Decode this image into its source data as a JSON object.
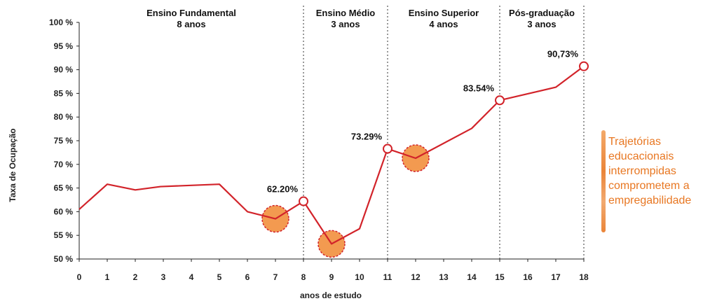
{
  "chart_data": {
    "type": "line",
    "ylabel": "Taxa de Ocupação",
    "xlabel": "anos de estudo",
    "ylim": [
      50,
      100
    ],
    "xlim": [
      0,
      18
    ],
    "x_ticks": [
      "0",
      "1",
      "2",
      "3",
      "4",
      "5",
      "6",
      "7",
      "8",
      "9",
      "10",
      "11",
      "12",
      "13",
      "14",
      "15",
      "16",
      "17",
      "18"
    ],
    "y_ticks": [
      "50 %",
      "55 %",
      "60 %",
      "65 %",
      "70 %",
      "75 %",
      "80 %",
      "85 %",
      "90 %",
      "95 %",
      "100 %"
    ],
    "grid": false,
    "line_color": "#d2232a",
    "highlight_color": "#f39a50",
    "series": [
      {
        "x": [
          0,
          1,
          2,
          2.9,
          5,
          6,
          7,
          8,
          9,
          10,
          11,
          12,
          14,
          15,
          17,
          18
        ],
        "y": [
          60.5,
          65.8,
          64.6,
          65.3,
          65.8,
          60.0,
          58.5,
          62.2,
          53.2,
          56.4,
          73.29,
          71.3,
          77.6,
          83.54,
          86.3,
          90.73
        ]
      }
    ],
    "stages": [
      {
        "name": "Ensino Fundamental",
        "duration": "8 anos",
        "x_start": 0,
        "x_end": 8
      },
      {
        "name": "Ensino Médio",
        "duration": "3 anos",
        "x_start": 8,
        "x_end": 11
      },
      {
        "name": "Ensino Superior",
        "duration": "4 anos",
        "x_start": 11,
        "x_end": 15
      },
      {
        "name": "Pós-graduação",
        "duration": "3 anos",
        "x_start": 15,
        "x_end": 18
      }
    ],
    "stage_boundaries": [
      8,
      11,
      15,
      18
    ],
    "point_labels": [
      {
        "x": 8,
        "y": 62.2,
        "text": "62.20%"
      },
      {
        "x": 11,
        "y": 73.29,
        "text": "73.29%"
      },
      {
        "x": 15,
        "y": 83.54,
        "text": "83.54%"
      },
      {
        "x": 18,
        "y": 90.73,
        "text": "90,73%"
      }
    ],
    "highlights": [
      {
        "x": 7,
        "y": 58.5
      },
      {
        "x": 9,
        "y": 53.2
      },
      {
        "x": 12,
        "y": 71.3
      }
    ]
  },
  "side_note": {
    "lines": [
      "Trajetórias",
      "educacionais",
      "interrompidas",
      "comprometem a",
      "empregabilidade"
    ]
  }
}
